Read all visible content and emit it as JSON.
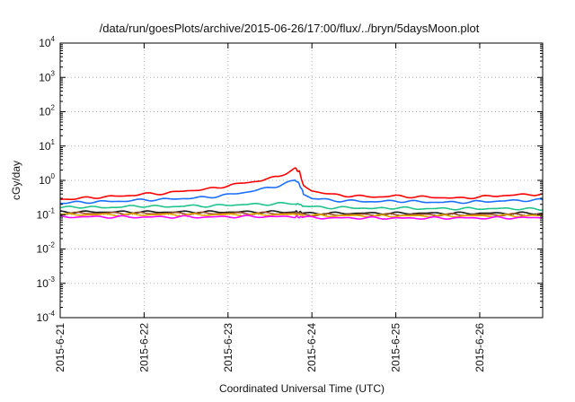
{
  "chart_data": {
    "type": "line",
    "title": "/data/run/goesPlots/archive/2015-06-26/17:00/flux/../bryn/5daysMoon.plot",
    "xlabel": "Coordinated Universal Time (UTC)",
    "ylabel": "cGy/day",
    "yscale": "log",
    "ylim": [
      0.0001,
      10000
    ],
    "xlim": [
      "2015-06-21",
      "2015-06-26 18:00"
    ],
    "grid": true,
    "yticks": [
      {
        "base": "10",
        "exp": "-4",
        "value": 0.0001
      },
      {
        "base": "10",
        "exp": "-3",
        "value": 0.001
      },
      {
        "base": "10",
        "exp": "-2",
        "value": 0.01
      },
      {
        "base": "10",
        "exp": "-1",
        "value": 0.1
      },
      {
        "base": "10",
        "exp": "0",
        "value": 1
      },
      {
        "base": "10",
        "exp": "1",
        "value": 10
      },
      {
        "base": "10",
        "exp": "2",
        "value": 100
      },
      {
        "base": "10",
        "exp": "3",
        "value": 1000
      },
      {
        "base": "10",
        "exp": "4",
        "value": 10000
      }
    ],
    "xticks": [
      "2015-6-21",
      "2015-6-22",
      "2015-6-23",
      "2015-6-24",
      "2015-6-25",
      "2015-6-26"
    ],
    "x_days": [
      0,
      0.25,
      0.5,
      0.75,
      1.0,
      1.25,
      1.5,
      1.75,
      2.0,
      2.2,
      2.4,
      2.6,
      2.8,
      2.85,
      2.9,
      3.0,
      3.25,
      3.5,
      3.75,
      4.0,
      4.25,
      4.5,
      4.75,
      5.0,
      5.25,
      5.5,
      5.75
    ],
    "series": [
      {
        "color": "#ff0000",
        "values": [
          0.28,
          0.3,
          0.33,
          0.35,
          0.4,
          0.42,
          0.5,
          0.55,
          0.7,
          0.85,
          1.0,
          1.3,
          2.2,
          1.8,
          0.7,
          0.5,
          0.38,
          0.35,
          0.33,
          0.35,
          0.33,
          0.32,
          0.3,
          0.33,
          0.36,
          0.38,
          0.4
        ]
      },
      {
        "color": "#1a6fff",
        "values": [
          0.22,
          0.23,
          0.24,
          0.25,
          0.27,
          0.28,
          0.3,
          0.32,
          0.38,
          0.45,
          0.55,
          0.7,
          1.0,
          0.8,
          0.4,
          0.3,
          0.26,
          0.25,
          0.24,
          0.25,
          0.24,
          0.23,
          0.23,
          0.24,
          0.25,
          0.26,
          0.27
        ]
      },
      {
        "color": "#1fc48a",
        "values": [
          0.16,
          0.17,
          0.16,
          0.17,
          0.18,
          0.17,
          0.18,
          0.18,
          0.19,
          0.2,
          0.2,
          0.21,
          0.21,
          0.2,
          0.18,
          0.17,
          0.16,
          0.16,
          0.15,
          0.16,
          0.15,
          0.15,
          0.15,
          0.15,
          0.15,
          0.15,
          0.14
        ]
      },
      {
        "color": "#1a1a1a",
        "values": [
          0.12,
          0.12,
          0.12,
          0.12,
          0.12,
          0.12,
          0.12,
          0.12,
          0.12,
          0.12,
          0.12,
          0.12,
          0.12,
          0.12,
          0.11,
          0.11,
          0.11,
          0.11,
          0.11,
          0.11,
          0.11,
          0.11,
          0.11,
          0.11,
          0.11,
          0.11,
          0.11
        ]
      },
      {
        "color": "#a0522d",
        "values": [
          0.11,
          0.11,
          0.11,
          0.11,
          0.11,
          0.11,
          0.11,
          0.11,
          0.11,
          0.11,
          0.11,
          0.11,
          0.11,
          0.11,
          0.1,
          0.1,
          0.1,
          0.1,
          0.1,
          0.1,
          0.1,
          0.1,
          0.1,
          0.1,
          0.1,
          0.1,
          0.1
        ]
      },
      {
        "color": "#e6a800",
        "values": [
          0.1,
          0.1,
          0.1,
          0.1,
          0.1,
          0.1,
          0.1,
          0.1,
          0.1,
          0.1,
          0.1,
          0.1,
          0.1,
          0.1,
          0.095,
          0.095,
          0.093,
          0.093,
          0.092,
          0.092,
          0.092,
          0.092,
          0.092,
          0.092,
          0.093,
          0.093,
          0.093
        ]
      },
      {
        "color": "#ff00ff",
        "values": [
          0.085,
          0.087,
          0.086,
          0.086,
          0.085,
          0.086,
          0.086,
          0.085,
          0.087,
          0.088,
          0.088,
          0.087,
          0.087,
          0.086,
          0.084,
          0.082,
          0.08,
          0.08,
          0.08,
          0.079,
          0.079,
          0.08,
          0.08,
          0.08,
          0.081,
          0.081,
          0.082
        ]
      }
    ]
  }
}
